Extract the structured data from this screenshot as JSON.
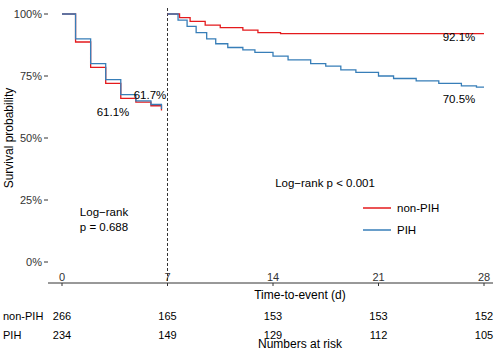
{
  "chart_data": {
    "type": "step",
    "x_label": "Time-to-event (d)",
    "y_label": "Survival probability",
    "xlim": [
      0,
      28
    ],
    "xticks": [
      0,
      7,
      14,
      21,
      28
    ],
    "ylim": [
      0,
      100
    ],
    "yticks": [
      {
        "value": 0,
        "label": "0%"
      },
      {
        "value": 25,
        "label": "25%"
      },
      {
        "value": 50,
        "label": "50%"
      },
      {
        "value": 75,
        "label": "75%"
      },
      {
        "value": 100,
        "label": "100%"
      }
    ],
    "grid": false,
    "legend": "right",
    "vline": 7,
    "series": [
      {
        "name": "non-PIH",
        "color": "#e41a1c",
        "line_style": "solid",
        "x": [
          0,
          0.9,
          1.9,
          2.9,
          3.9,
          4.9,
          5.9,
          6.6,
          null,
          7,
          7.8,
          8.5,
          9.5,
          10.5,
          12,
          13,
          14.5,
          28
        ],
        "values": [
          100,
          88.7,
          78.5,
          72,
          66,
          64.5,
          63,
          61.1,
          null,
          100,
          98.5,
          97,
          95.5,
          94.5,
          93.5,
          92.5,
          92.1,
          92.1
        ]
      },
      {
        "name": "PIH",
        "color": "#377eb8",
        "line_style": "solid",
        "x": [
          0,
          0.9,
          1.9,
          2.9,
          3.9,
          4.9,
          5.9,
          6.6,
          null,
          7,
          7.7,
          8.3,
          8.9,
          9.6,
          10.2,
          11,
          12,
          12.8,
          14,
          15,
          16.5,
          17.5,
          18.5,
          19.5,
          21,
          22,
          23.5,
          25,
          26.5,
          27.5,
          28
        ],
        "values": [
          100,
          90,
          80,
          73.5,
          67.5,
          65,
          63.5,
          61.7,
          null,
          100,
          97.5,
          95,
          92.5,
          90,
          88,
          86.5,
          85.5,
          84.5,
          83,
          81.5,
          80,
          79,
          77.5,
          76.5,
          75,
          74,
          73,
          72,
          71,
          70.5,
          70.5
        ]
      }
    ],
    "annotations": [
      "61.7%",
      "61.1%",
      "92.1%",
      "70.5%",
      "Log−rank",
      "p = 0.688",
      "Log−rank   p < 0.001"
    ],
    "risk_table": {
      "title": "Numbers at risk",
      "rows": [
        {
          "name": "non-PIH",
          "values": [
            266,
            165,
            153,
            153,
            152
          ]
        },
        {
          "name": "PIH",
          "values": [
            234,
            149,
            129,
            112,
            105
          ]
        }
      ]
    }
  }
}
